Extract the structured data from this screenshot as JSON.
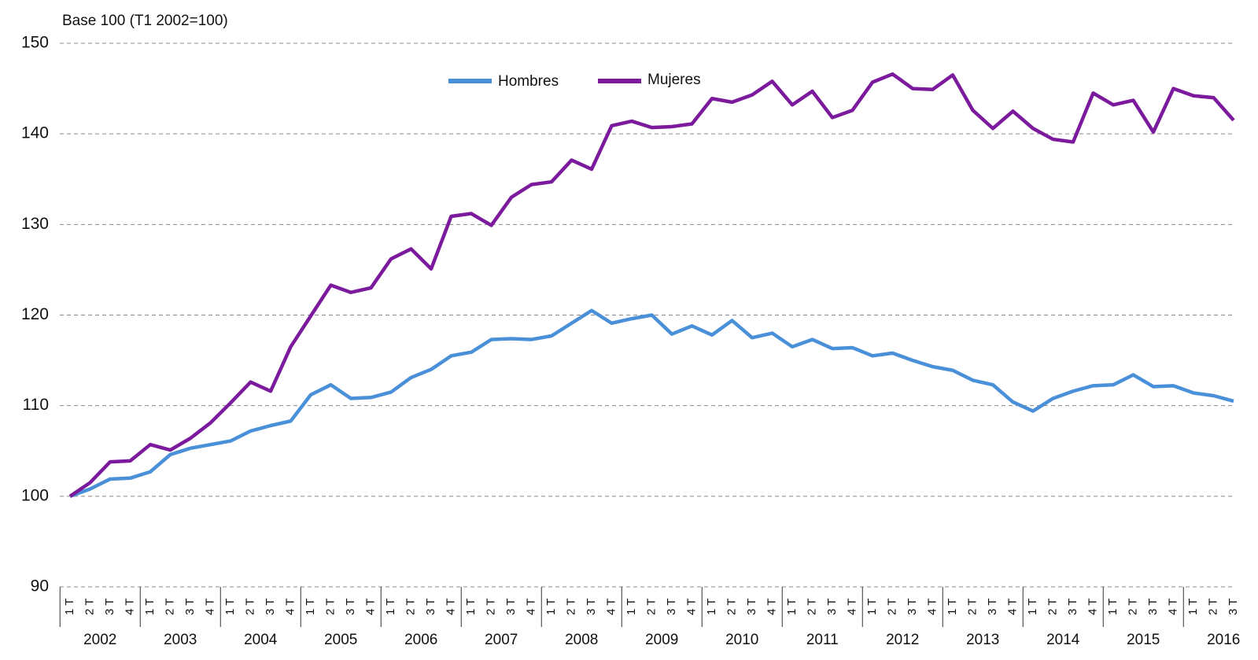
{
  "chart_data": {
    "type": "line",
    "axis_label": "Base 100 (T1 2002=100)",
    "categories": [
      "1 T",
      "2 T",
      "3 T",
      "4 T",
      "1 T",
      "2 T",
      "3 T",
      "4 T",
      "1 T",
      "2 T",
      "3 T",
      "4 T",
      "1 T",
      "2 T",
      "3 T",
      "4 T",
      "1 T",
      "2 T",
      "3 T",
      "4 T",
      "1 T",
      "2 T",
      "3 T",
      "4 T",
      "1 T",
      "2 T",
      "3 T",
      "4 T",
      "1 T",
      "2 T",
      "3 T",
      "4 T",
      "1 T",
      "2 T",
      "3 T",
      "4 T",
      "1 T",
      "2 T",
      "3 T",
      "4 T",
      "1 T",
      "2 T",
      "3 T",
      "4 T",
      "1 T",
      "2 T",
      "3 T",
      "4 T",
      "1 T",
      "2 T",
      "3 T",
      "4 T",
      "1 T",
      "2 T",
      "3 T",
      "4 T",
      "1 T",
      "2 T",
      "3 T"
    ],
    "years": [
      "2002",
      "2003",
      "2004",
      "2005",
      "2006",
      "2007",
      "2008",
      "2009",
      "2010",
      "2011",
      "2012",
      "2013",
      "2014",
      "2015",
      "2016"
    ],
    "series": [
      {
        "name": "Hombres",
        "color": "#4a90d9",
        "values": [
          100,
          100.8,
          101.9,
          102.0,
          102.7,
          104.6,
          105.3,
          105.7,
          106.1,
          107.2,
          107.8,
          108.3,
          111.2,
          112.3,
          110.8,
          110.9,
          111.5,
          113.1,
          114.0,
          115.5,
          115.9,
          117.3,
          117.4,
          117.3,
          117.7,
          119.1,
          120.5,
          119.1,
          119.6,
          120.0,
          117.9,
          118.8,
          117.8,
          119.4,
          117.5,
          118.0,
          116.5,
          117.3,
          116.3,
          116.4,
          115.5,
          115.8,
          115.0,
          114.3,
          113.9,
          112.8,
          112.3,
          110.4,
          109.4,
          110.8,
          111.6,
          112.2,
          112.3,
          113.4,
          112.1,
          112.2,
          111.4,
          111.1,
          110.5
        ]
      },
      {
        "name": "Mujeres",
        "color": "#7b1a9c",
        "values": [
          100,
          101.5,
          103.8,
          103.9,
          105.7,
          105.1,
          106.4,
          108.1,
          110.3,
          112.6,
          111.6,
          116.5,
          119.9,
          123.3,
          122.5,
          123.0,
          126.2,
          127.3,
          125.1,
          130.9,
          131.2,
          129.9,
          133.0,
          134.4,
          134.7,
          137.1,
          136.1,
          140.9,
          141.4,
          140.7,
          140.8,
          141.1,
          143.9,
          143.5,
          144.3,
          145.8,
          143.2,
          144.7,
          141.8,
          142.6,
          145.7,
          146.6,
          145.0,
          144.9,
          146.5,
          142.6,
          140.6,
          142.5,
          140.6,
          139.4,
          139.1,
          144.5,
          143.2,
          143.7,
          140.2,
          145.0,
          144.2,
          144.0,
          141.5
        ]
      }
    ],
    "ylim": [
      90,
      150
    ],
    "yticks": [
      90,
      100,
      110,
      120,
      130,
      140,
      150
    ],
    "grid": true
  }
}
